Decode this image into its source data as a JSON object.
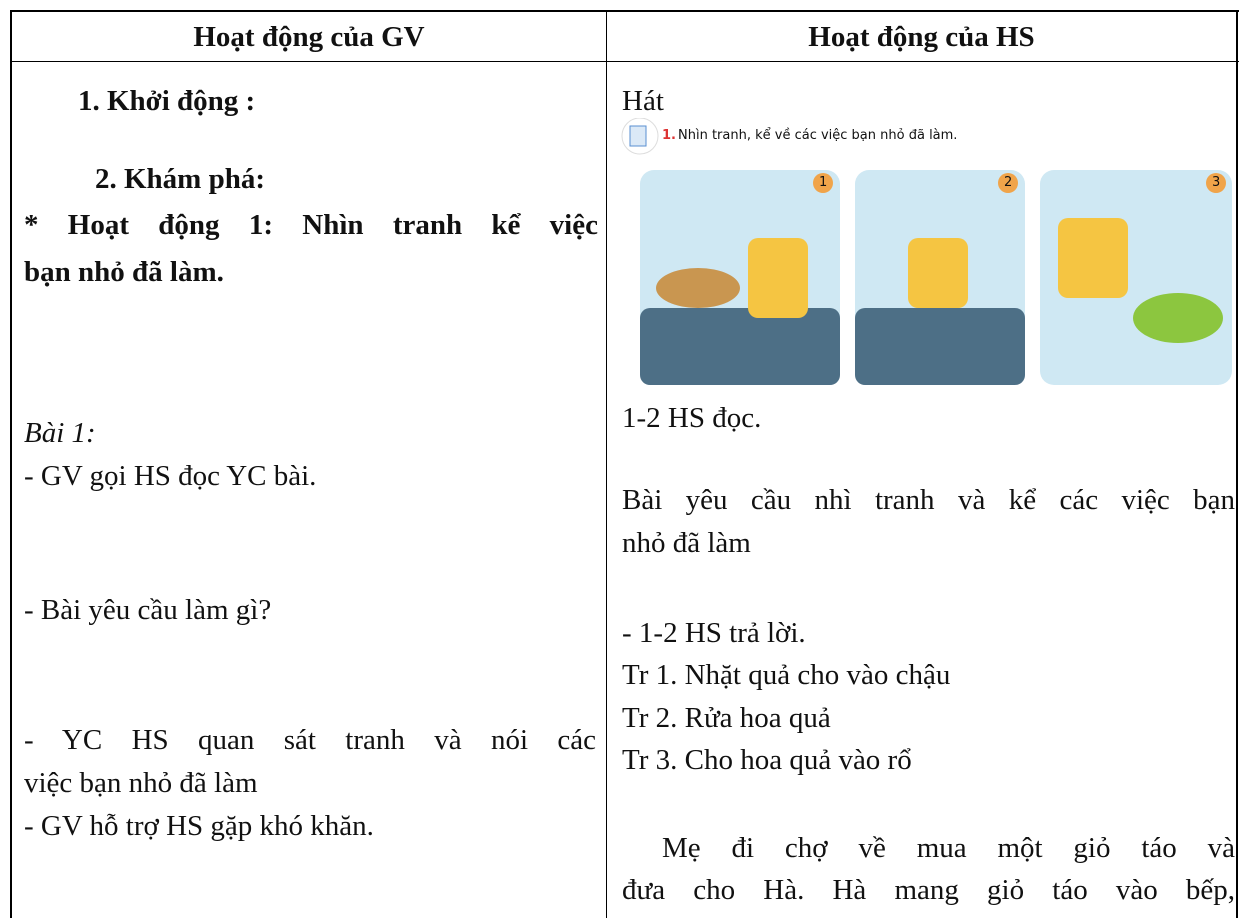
{
  "table": {
    "header": [
      "Hoạt động của GV",
      "Hoạt động của HS"
    ],
    "left": [
      "1.  Khởi động :",
      "2. Khám phá:",
      "* Hoạt động 1: Nhìn tranh kể việc",
      "bạn nhỏ đã làm.",
      "Bài 1:",
      "- GV gọi HS đọc YC bài.",
      "- Bài yêu cầu làm gì?",
      "- YC HS quan sát tranh và nói các",
      "việc bạn nhỏ đã làm",
      "- GV hỗ trợ HS gặp khó khăn."
    ],
    "right": [
      "Hát",
      "1-2 HS đọc.",
      "Bài yêu cầu nhì tranh và kể các việc bạn",
      "nhỏ đã làm",
      "- 1-2 HS trả lời.",
      "Tr 1. Nhặt quả cho vào chậu",
      "Tr 2. Rửa hoa quả",
      "Tr 3. Cho hoa quả vào rổ",
      "Mẹ đi chợ về mua một giỏ táo và",
      "đưa cho Hà. Hà mang giỏ táo vào bếp,"
    ],
    "figure": {
      "caption_number": "1.",
      "caption": "Nhìn tranh, kể về các việc bạn nhỏ đã làm.",
      "panels": [
        "1",
        "2",
        "3"
      ]
    }
  }
}
